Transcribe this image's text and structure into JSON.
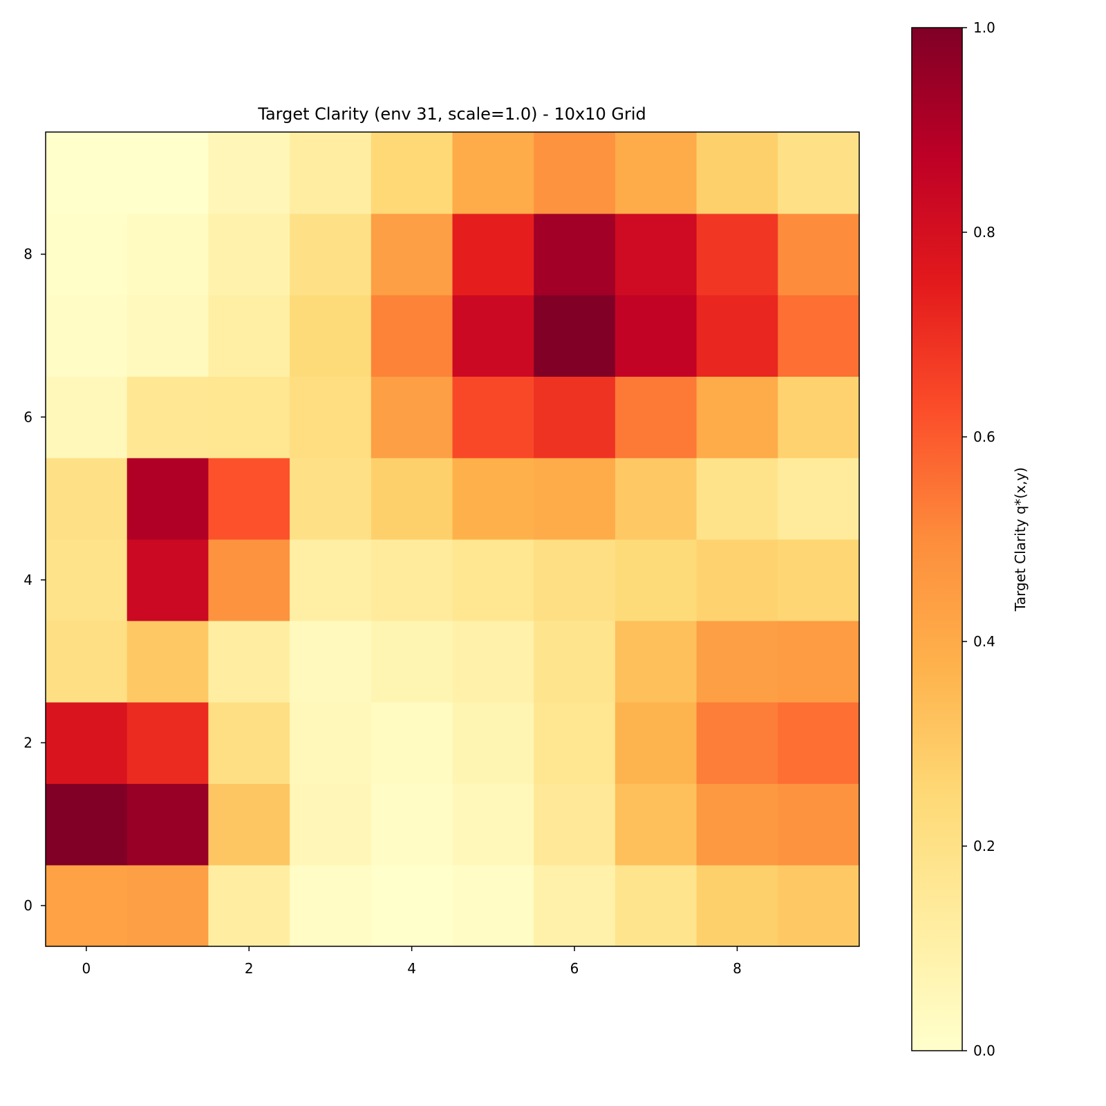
{
  "chart_data": {
    "type": "heatmap",
    "title": "Target Clarity (env 31, scale=1.0) - 10x10 Grid",
    "xlabel": "",
    "ylabel": "",
    "x_ticks": [
      "0",
      "2",
      "4",
      "6",
      "8"
    ],
    "y_ticks": [
      "0",
      "2",
      "4",
      "6",
      "8"
    ],
    "x": [
      0,
      1,
      2,
      3,
      4,
      5,
      6,
      7,
      8,
      9
    ],
    "y": [
      0,
      1,
      2,
      3,
      4,
      5,
      6,
      7,
      8,
      9
    ],
    "origin": "lower",
    "colormap": "YlOrRd",
    "vmin": 0.0,
    "vmax": 1.0,
    "colorbar_label": "Target Clarity q*(x,y)",
    "colorbar_ticks": [
      "0.0",
      "0.2",
      "0.4",
      "0.6",
      "0.8",
      "1.0"
    ],
    "values_by_row_y0_to_y9": [
      [
        0.43,
        0.44,
        0.12,
        0.02,
        0.0,
        0.02,
        0.1,
        0.18,
        0.28,
        0.3
      ],
      [
        1.0,
        0.95,
        0.31,
        0.06,
        0.02,
        0.05,
        0.15,
        0.33,
        0.46,
        0.48
      ],
      [
        0.78,
        0.71,
        0.21,
        0.05,
        0.03,
        0.07,
        0.17,
        0.37,
        0.53,
        0.56
      ],
      [
        0.21,
        0.3,
        0.12,
        0.04,
        0.07,
        0.1,
        0.18,
        0.33,
        0.44,
        0.45
      ],
      [
        0.19,
        0.83,
        0.48,
        0.11,
        0.14,
        0.17,
        0.21,
        0.24,
        0.27,
        0.26
      ],
      [
        0.2,
        0.9,
        0.62,
        0.2,
        0.28,
        0.38,
        0.4,
        0.3,
        0.19,
        0.14
      ],
      [
        0.05,
        0.16,
        0.17,
        0.22,
        0.44,
        0.64,
        0.69,
        0.54,
        0.4,
        0.27
      ],
      [
        0.02,
        0.04,
        0.11,
        0.24,
        0.52,
        0.83,
        1.0,
        0.86,
        0.72,
        0.56
      ],
      [
        0.01,
        0.03,
        0.09,
        0.2,
        0.44,
        0.74,
        0.93,
        0.82,
        0.68,
        0.5
      ],
      [
        0.0,
        0.0,
        0.06,
        0.12,
        0.25,
        0.4,
        0.48,
        0.4,
        0.28,
        0.2
      ]
    ]
  }
}
